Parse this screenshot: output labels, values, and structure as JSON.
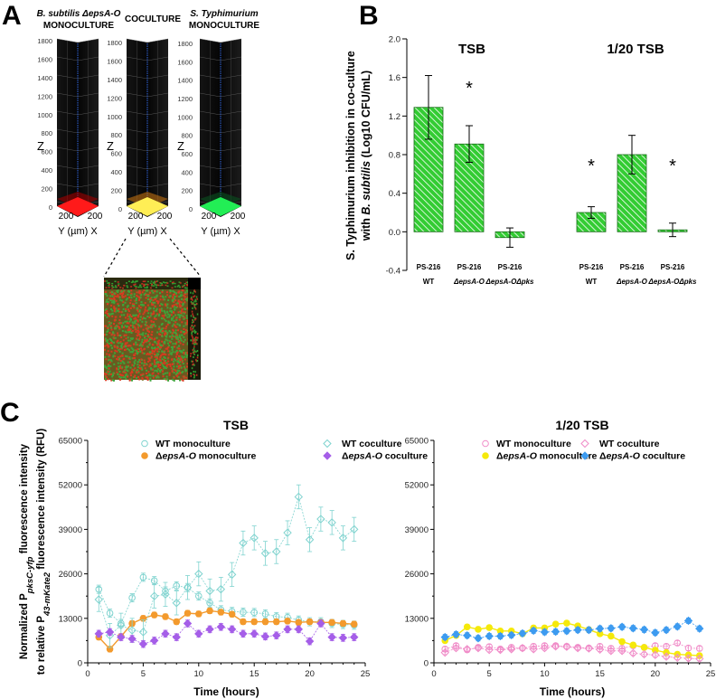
{
  "panel_letters": {
    "a": "A",
    "b": "B",
    "c": "C"
  },
  "panel_a": {
    "towers": [
      {
        "title_line1": "B. subtilis ΔepsA-O",
        "title_line2": "MONOCULTURE",
        "color": "#ff1a1a",
        "haze": "#a00000"
      },
      {
        "title_line1": "",
        "title_line2": "COCULTURE",
        "color": "#ffee55",
        "haze": "#c07010"
      },
      {
        "title_line1": "S. Typhimurium",
        "title_line2": "MONOCULTURE",
        "color": "#22ee55",
        "haze": "#0a5020"
      }
    ],
    "z_ticks": [
      "0",
      "200",
      "400",
      "600",
      "800",
      "1000",
      "1200",
      "1400",
      "1600",
      "1800"
    ],
    "z_label": "Z",
    "base_ticks": [
      "200",
      "200"
    ],
    "base_label": "Y  (µm)  X"
  },
  "chart_data": [
    {
      "type": "bar",
      "panel": "B",
      "ylabel_line1": "S. Typhimurium inhibition in co-culture",
      "ylabel_line2_prefix": "with ",
      "ylabel_line2_italic": "B. subtilis",
      "ylabel_line2_suffix": " (Log10 CFU/mL)",
      "ylim": [
        -0.4,
        2.0
      ],
      "yticks": [
        "-0.4",
        "0.0",
        "0.4",
        "0.8",
        "1.2",
        "1.6",
        "2.0"
      ],
      "fill_color": "#33cc33",
      "groups": [
        {
          "title": "TSB",
          "bars": [
            {
              "line1": "PS-216",
              "line2": "WT",
              "value": 1.29,
              "error": 0.33,
              "significant": false
            },
            {
              "line1": "PS-216",
              "line2": "ΔepsA-O",
              "value": 0.91,
              "error": 0.19,
              "significant": true
            },
            {
              "line1": "PS-216",
              "line2": "ΔepsA-OΔpks",
              "value": -0.06,
              "error": 0.1,
              "significant": false
            }
          ]
        },
        {
          "title": "1/20 TSB",
          "bars": [
            {
              "line1": "PS-216",
              "line2": "WT",
              "value": 0.2,
              "error": 0.06,
              "significant": true
            },
            {
              "line1": "PS-216",
              "line2": "ΔepsA-O",
              "value": 0.8,
              "error": 0.2,
              "significant": false
            },
            {
              "line1": "PS-216",
              "line2": "ΔepsA-OΔpks",
              "value": 0.02,
              "error": 0.07,
              "significant": true
            }
          ]
        }
      ],
      "significance_mark": "*"
    },
    {
      "type": "line",
      "panel": "C-left",
      "title": "TSB",
      "xlabel": "Time (hours)",
      "xlim": [
        0,
        25
      ],
      "ylim": [
        0,
        65000
      ],
      "xticks": [
        "0",
        "5",
        "10",
        "15",
        "20",
        "25"
      ],
      "yticks": [
        "0",
        "13000",
        "26000",
        "39000",
        "52000",
        "65000"
      ],
      "series": [
        {
          "name": "WT monoculture",
          "italic": "",
          "marker": "circle-open",
          "color": "#7fd3cf",
          "dash": true,
          "error": 1200,
          "x": [
            1,
            2,
            3,
            4,
            5,
            6,
            7,
            8,
            9,
            10,
            11,
            12,
            13,
            14,
            15,
            16,
            17,
            18,
            19,
            20,
            21,
            22,
            23,
            24
          ],
          "y": [
            21500,
            14500,
            11500,
            19000,
            25000,
            24000,
            21000,
            22500,
            22000,
            19500,
            17500,
            15500,
            15000,
            14800,
            14700,
            14300,
            13500,
            13300,
            12500,
            12000,
            12000,
            11500,
            11200,
            11000
          ]
        },
        {
          "name_prefix": "Δ",
          "italic": "epsA-O",
          "name": " monoculture",
          "marker": "circle-filled",
          "color": "#f39a2d",
          "dash": false,
          "error": 800,
          "x": [
            1,
            2,
            3,
            4,
            5,
            6,
            7,
            8,
            9,
            10,
            11,
            12,
            13,
            14,
            15,
            16,
            17,
            18,
            19,
            20,
            21,
            22,
            23,
            24
          ],
          "y": [
            7500,
            4000,
            7700,
            11500,
            13000,
            14000,
            13500,
            12000,
            14500,
            14300,
            15200,
            14800,
            14200,
            12000,
            12000,
            12000,
            12000,
            12200,
            11800,
            12000,
            11800,
            11800,
            11500,
            11300
          ]
        },
        {
          "name": "WT coculture",
          "italic": "",
          "marker": "diamond-open",
          "color": "#7fd3cf",
          "dash": true,
          "error": 3500,
          "x": [
            1,
            2,
            3,
            4,
            5,
            6,
            7,
            8,
            9,
            10,
            11,
            12,
            13,
            14,
            15,
            16,
            17,
            18,
            19,
            20,
            21,
            22,
            23,
            24
          ],
          "y": [
            18500,
            8000,
            11000,
            9500,
            9000,
            19500,
            20000,
            17500,
            22000,
            26000,
            21000,
            21500,
            25800,
            35000,
            36500,
            32000,
            32500,
            38000,
            48500,
            36000,
            42000,
            41000,
            36500,
            39000
          ]
        },
        {
          "name_prefix": "Δ",
          "italic": "epsA-O",
          "name": " coculture",
          "marker": "diamond-filled",
          "color": "#a55ee8",
          "dash": true,
          "error": 1000,
          "x": [
            1,
            2,
            3,
            4,
            5,
            6,
            7,
            8,
            9,
            10,
            11,
            12,
            13,
            14,
            15,
            16,
            17,
            18,
            19,
            20,
            21,
            22,
            23,
            24
          ],
          "y": [
            8500,
            9000,
            7500,
            7000,
            5500,
            6500,
            8500,
            7500,
            11500,
            8500,
            9800,
            10500,
            9800,
            8500,
            8500,
            7700,
            8000,
            9800,
            9800,
            6300,
            11500,
            7500,
            7300,
            7500
          ]
        }
      ]
    },
    {
      "type": "line",
      "panel": "C-right",
      "title": "1/20 TSB",
      "xlabel": "Time (hours)",
      "xlim": [
        0,
        25
      ],
      "ylim": [
        0,
        65000
      ],
      "xticks": [
        "0",
        "5",
        "10",
        "15",
        "20",
        "25"
      ],
      "yticks": [
        "0",
        "13000",
        "26000",
        "39000",
        "52000",
        "65000"
      ],
      "series": [
        {
          "name": "WT monoculture",
          "italic": "",
          "marker": "circle-open",
          "color": "#f08cc8",
          "dash": true,
          "error": 700,
          "x": [
            1,
            2,
            3,
            4,
            5,
            6,
            7,
            8,
            9,
            10,
            11,
            12,
            13,
            14,
            15,
            16,
            17,
            18,
            19,
            20,
            21,
            22,
            23,
            24
          ],
          "y": [
            4000,
            5000,
            3800,
            4500,
            4700,
            4000,
            4500,
            4300,
            4800,
            5000,
            5000,
            4800,
            4500,
            4300,
            4800,
            4200,
            4200,
            5000,
            4500,
            5000,
            4800,
            5800,
            4300,
            4200
          ]
        },
        {
          "name_prefix": "Δ",
          "italic": "epsA-O",
          "name": " monoculture",
          "marker": "circle-filled",
          "color": "#f5e90a",
          "dash": false,
          "error": 700,
          "x": [
            1,
            2,
            3,
            4,
            5,
            6,
            7,
            8,
            9,
            10,
            11,
            12,
            13,
            14,
            15,
            16,
            17,
            18,
            19,
            20,
            21,
            22,
            23,
            24
          ],
          "y": [
            6500,
            8000,
            10500,
            9800,
            10300,
            9300,
            9300,
            8500,
            10200,
            10200,
            11300,
            11600,
            10800,
            9700,
            8500,
            7800,
            6200,
            5200,
            4500,
            3700,
            3000,
            2500,
            2300,
            2100
          ]
        },
        {
          "name": "WT coculture",
          "italic": "",
          "marker": "diamond-open",
          "color": "#f08cc8",
          "dash": true,
          "error": 600,
          "x": [
            1,
            2,
            3,
            4,
            5,
            6,
            7,
            8,
            9,
            10,
            11,
            12,
            13,
            14,
            15,
            16,
            17,
            18,
            19,
            20,
            21,
            22,
            23,
            24
          ],
          "y": [
            3000,
            4300,
            4000,
            4300,
            3800,
            3800,
            4000,
            4300,
            4000,
            4300,
            4800,
            4700,
            4300,
            4200,
            3900,
            3500,
            3500,
            2800,
            2500,
            2300,
            1800,
            1500,
            1300,
            1200
          ]
        },
        {
          "name_prefix": "Δ",
          "italic": "epsA-O",
          "name": " coculture",
          "marker": "diamond-filled",
          "color": "#3d9bf0",
          "dash": true,
          "error": 800,
          "x": [
            1,
            2,
            3,
            4,
            5,
            6,
            7,
            8,
            9,
            10,
            11,
            12,
            13,
            14,
            15,
            16,
            17,
            18,
            19,
            20,
            21,
            22,
            23,
            24
          ],
          "y": [
            7500,
            8300,
            8000,
            7200,
            7800,
            7800,
            8100,
            8600,
            9400,
            9000,
            9100,
            9300,
            9600,
            9600,
            10000,
            10100,
            10500,
            10100,
            9700,
            8800,
            9600,
            10600,
            12300,
            10000
          ]
        }
      ]
    }
  ],
  "panel_c_ylabel": {
    "line1_pre": "Normalized P",
    "line1_sub": "pksC-yfp",
    "line1_post": " fluorescence intensity",
    "line2_pre": "to relative P",
    "line2_sub": "43-mKate2",
    "line2_post": " fluorescence intensity (RFU)"
  }
}
